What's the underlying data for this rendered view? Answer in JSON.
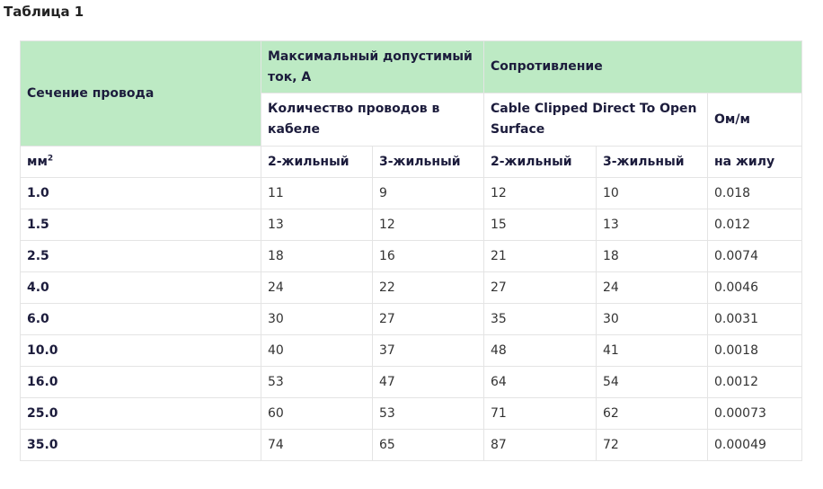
{
  "title": "Таблица 1",
  "table": {
    "header": {
      "section": "Сечение провода",
      "current": "Максимальный допустимый ток, А",
      "resistance": "Сопротивление",
      "wires": "Количество проводов в кабеле",
      "cable": "Cable Clipped Direct To Open Surface",
      "ohm": "Ом/м"
    },
    "units": [
      {
        "text": "мм",
        "sup": "2"
      },
      "2-жильный",
      "3-жильный",
      "2-жильный",
      "3-жильный",
      "на жилу"
    ],
    "rows": [
      [
        "1.0",
        "11",
        "9",
        "12",
        "10",
        "0.018"
      ],
      [
        "1.5",
        "13",
        "12",
        "15",
        "13",
        "0.012"
      ],
      [
        "2.5",
        "18",
        "16",
        "21",
        "18",
        "0.0074"
      ],
      [
        "4.0",
        "24",
        "22",
        "27",
        "24",
        "0.0046"
      ],
      [
        "6.0",
        "30",
        "27",
        "35",
        "30",
        "0.0031"
      ],
      [
        "10.0",
        "40",
        "37",
        "48",
        "41",
        "0.0018"
      ],
      [
        "16.0",
        "53",
        "47",
        "64",
        "54",
        "0.0012"
      ],
      [
        "25.0",
        "60",
        "53",
        "71",
        "62",
        "0.00073"
      ],
      [
        "35.0",
        "74",
        "65",
        "87",
        "72",
        "0.00049"
      ]
    ]
  }
}
